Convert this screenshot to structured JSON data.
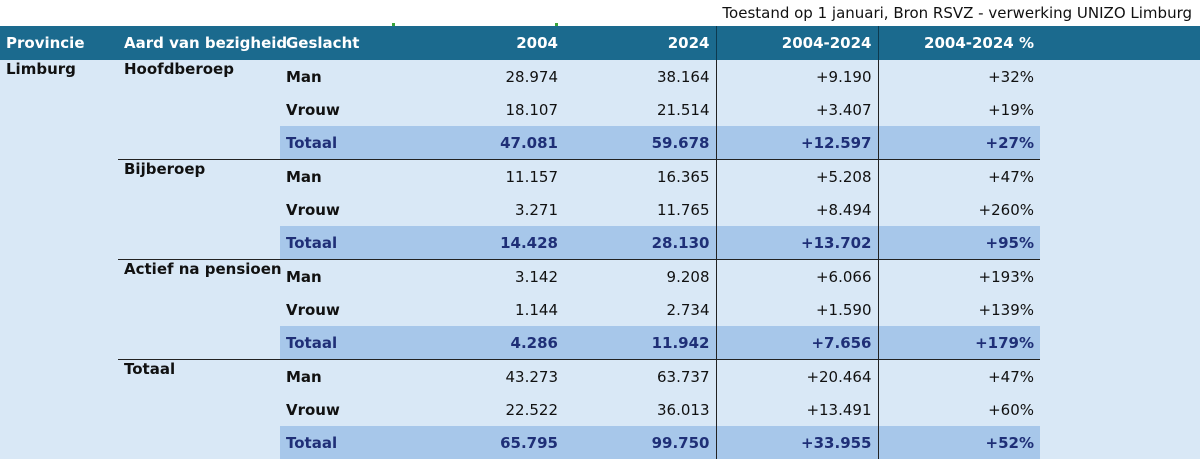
{
  "source_note": "Toestand op 1 januari, Bron RSVZ - verwerking UNIZO Limburg",
  "headers": {
    "provincie": "Provincie",
    "aard": "Aard van bezigheid",
    "geslacht": "Geslacht",
    "y2004": "2004",
    "y2024": "2024",
    "diff": "2004-2024",
    "pct": "2004-2024 %"
  },
  "provincie": "Limburg",
  "groups": [
    {
      "aard": "Hoofdberoep",
      "rows": [
        {
          "geslacht": "Man",
          "y2004": "28.974",
          "y2024": "38.164",
          "diff": "+9.190",
          "pct": "+32%"
        },
        {
          "geslacht": "Vrouw",
          "y2004": "18.107",
          "y2024": "21.514",
          "diff": "+3.407",
          "pct": "+19%"
        },
        {
          "geslacht": "Totaal",
          "y2004": "47.081",
          "y2024": "59.678",
          "diff": "+12.597",
          "pct": "+27%"
        }
      ]
    },
    {
      "aard": "Bijberoep",
      "rows": [
        {
          "geslacht": "Man",
          "y2004": "11.157",
          "y2024": "16.365",
          "diff": "+5.208",
          "pct": "+47%"
        },
        {
          "geslacht": "Vrouw",
          "y2004": "3.271",
          "y2024": "11.765",
          "diff": "+8.494",
          "pct": "+260%"
        },
        {
          "geslacht": "Totaal",
          "y2004": "14.428",
          "y2024": "28.130",
          "diff": "+13.702",
          "pct": "+95%"
        }
      ]
    },
    {
      "aard": "Actief na pensioen",
      "rows": [
        {
          "geslacht": "Man",
          "y2004": "3.142",
          "y2024": "9.208",
          "diff": "+6.066",
          "pct": "+193%"
        },
        {
          "geslacht": "Vrouw",
          "y2004": "1.144",
          "y2024": "2.734",
          "diff": "+1.590",
          "pct": "+139%"
        },
        {
          "geslacht": "Totaal",
          "y2004": "4.286",
          "y2024": "11.942",
          "diff": "+7.656",
          "pct": "+179%"
        }
      ]
    },
    {
      "aard": "Totaal",
      "rows": [
        {
          "geslacht": "Man",
          "y2004": "43.273",
          "y2024": "63.737",
          "diff": "+20.464",
          "pct": "+47%"
        },
        {
          "geslacht": "Vrouw",
          "y2004": "22.522",
          "y2024": "36.013",
          "diff": "+13.491",
          "pct": "+60%"
        },
        {
          "geslacht": "Totaal",
          "y2004": "65.795",
          "y2024": "99.750",
          "diff": "+33.955",
          "pct": "+52%"
        }
      ]
    }
  ],
  "colors": {
    "header_bg": "#1b6a8e",
    "body_bg": "#d9e8f6",
    "total_bg": "#a7c7ea",
    "total_text": "#1f2f77"
  }
}
